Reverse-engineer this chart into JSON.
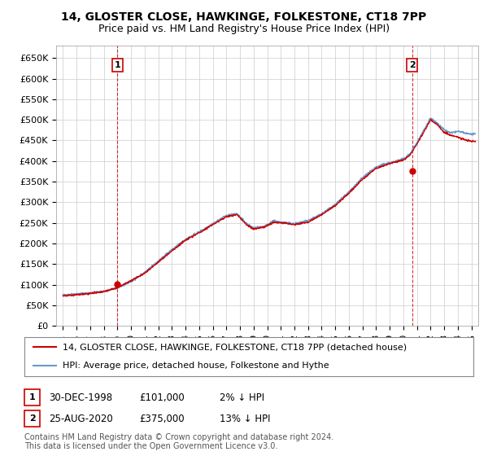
{
  "title": "14, GLOSTER CLOSE, HAWKINGE, FOLKESTONE, CT18 7PP",
  "subtitle": "Price paid vs. HM Land Registry's House Price Index (HPI)",
  "ylabel_ticks": [
    "£0",
    "£50K",
    "£100K",
    "£150K",
    "£200K",
    "£250K",
    "£300K",
    "£350K",
    "£400K",
    "£450K",
    "£500K",
    "£550K",
    "£600K",
    "£650K"
  ],
  "ytick_values": [
    0,
    50000,
    100000,
    150000,
    200000,
    250000,
    300000,
    350000,
    400000,
    450000,
    500000,
    550000,
    600000,
    650000
  ],
  "ylim": [
    0,
    680000
  ],
  "xlim_start": 1994.5,
  "xlim_end": 2025.5,
  "red_line_color": "#cc0000",
  "blue_line_color": "#6699cc",
  "grid_color": "#cccccc",
  "background_color": "#ffffff",
  "sale1_year": 1998.99,
  "sale1_price": 101000,
  "sale1_label": "1",
  "sale2_year": 2020.65,
  "sale2_price": 375000,
  "sale2_label": "2",
  "legend_line1": "14, GLOSTER CLOSE, HAWKINGE, FOLKESTONE, CT18 7PP (detached house)",
  "legend_line2": "HPI: Average price, detached house, Folkestone and Hythe",
  "ann1_box": "1",
  "ann1_date": "30-DEC-1998",
  "ann1_price": "£101,000",
  "ann1_pct": "2% ↓ HPI",
  "ann2_box": "2",
  "ann2_date": "25-AUG-2020",
  "ann2_price": "£375,000",
  "ann2_pct": "13% ↓ HPI",
  "footer": "Contains HM Land Registry data © Crown copyright and database right 2024.\nThis data is licensed under the Open Government Licence v3.0.",
  "title_fontsize": 10,
  "subtitle_fontsize": 9,
  "tick_fontsize": 8,
  "legend_fontsize": 8,
  "ann_fontsize": 8.5,
  "footer_fontsize": 7,
  "xlabel_years": [
    1995,
    1996,
    1997,
    1998,
    1999,
    2000,
    2001,
    2002,
    2003,
    2004,
    2005,
    2006,
    2007,
    2008,
    2009,
    2010,
    2011,
    2012,
    2013,
    2014,
    2015,
    2016,
    2017,
    2018,
    2019,
    2020,
    2021,
    2022,
    2023,
    2024,
    2025
  ]
}
